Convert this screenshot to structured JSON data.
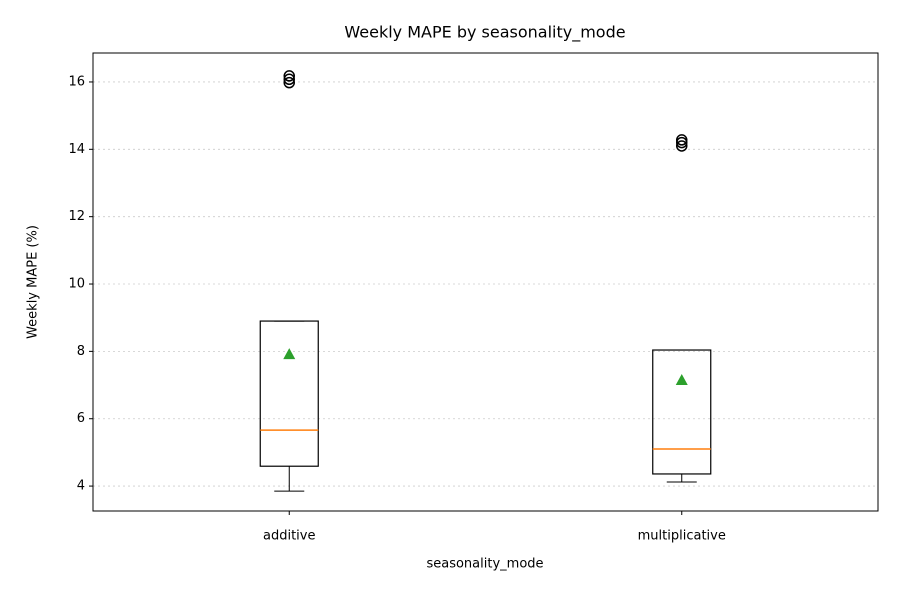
{
  "chart_data": {
    "type": "box",
    "title": "Weekly MAPE by seasonality_mode",
    "x_label": "seasonality_mode",
    "y_label": "Weekly MAPE (%)",
    "categories": [
      "additive",
      "multiplicative"
    ],
    "boxes": [
      {
        "whisker_low": 3.85,
        "q1": 4.59,
        "median": 5.66,
        "q3": 8.9,
        "whisker_high": 8.9,
        "mean": 7.92,
        "outliers": [
          15.98,
          16.08,
          16.18
        ]
      },
      {
        "whisker_low": 4.12,
        "q1": 4.36,
        "median": 5.1,
        "q3": 8.04,
        "whisker_high": 8.04,
        "mean": 7.15,
        "outliers": [
          14.1,
          14.2,
          14.28
        ]
      }
    ],
    "median_color": "#ff7f0e",
    "mean_color": "#2ca02c",
    "ylim": [
      3.26,
      16.86
    ],
    "yticks": [
      4,
      6,
      8,
      10,
      12,
      14,
      16
    ],
    "grid": true
  }
}
